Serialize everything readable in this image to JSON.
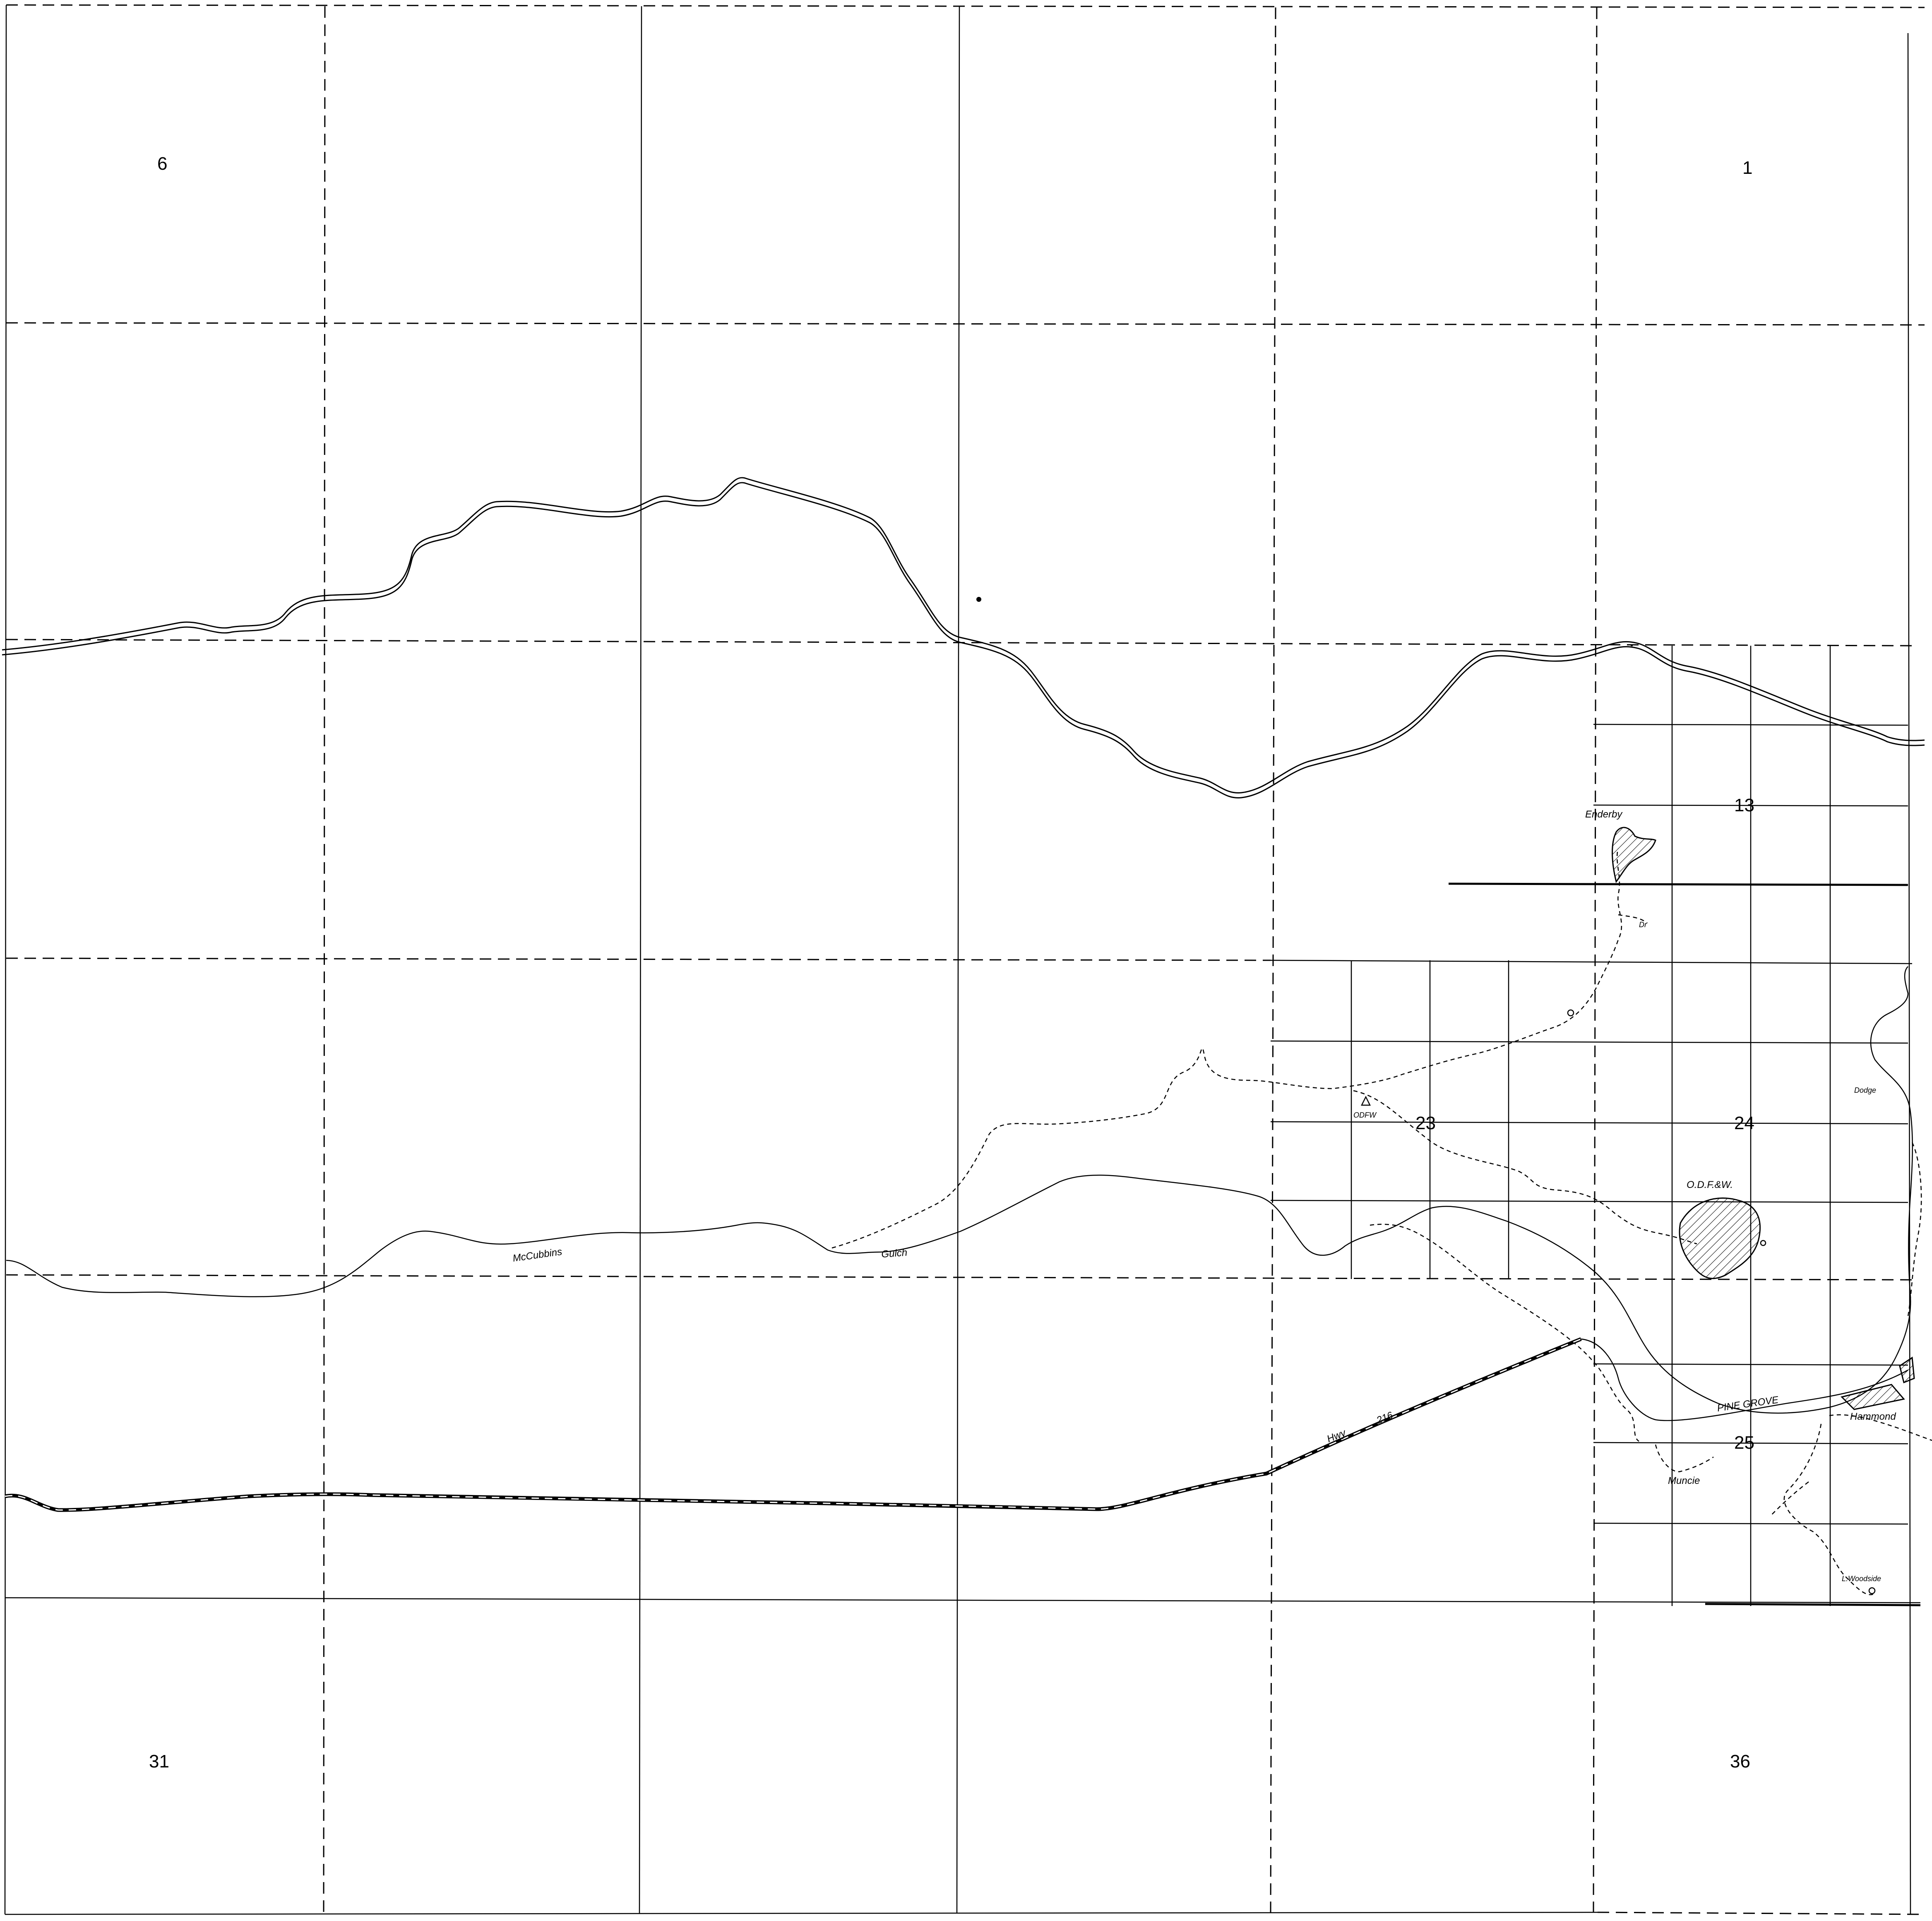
{
  "sections": {
    "s6": "6",
    "s1": "1",
    "s13": "13",
    "s23": "23",
    "s24": "24",
    "s25": "25",
    "s31": "31",
    "s36": "36"
  },
  "places": {
    "enderby": "Enderby",
    "odfw_center": "ODFW",
    "odfw_east": "O.D.F.&W.",
    "dodge": "Dodge",
    "hammond": "Hammond",
    "muncie": "Muncie",
    "lwoodside": "L.Woodside",
    "pine_grove": "PINE  GROVE",
    "dr": "Dr"
  },
  "features": {
    "mccubbins": "McCubbins",
    "gulch": "Gulch",
    "hwy": "Hwy",
    "hwy_num": "216"
  },
  "colors": {
    "ink": "#000000",
    "paper": "#ffffff"
  }
}
